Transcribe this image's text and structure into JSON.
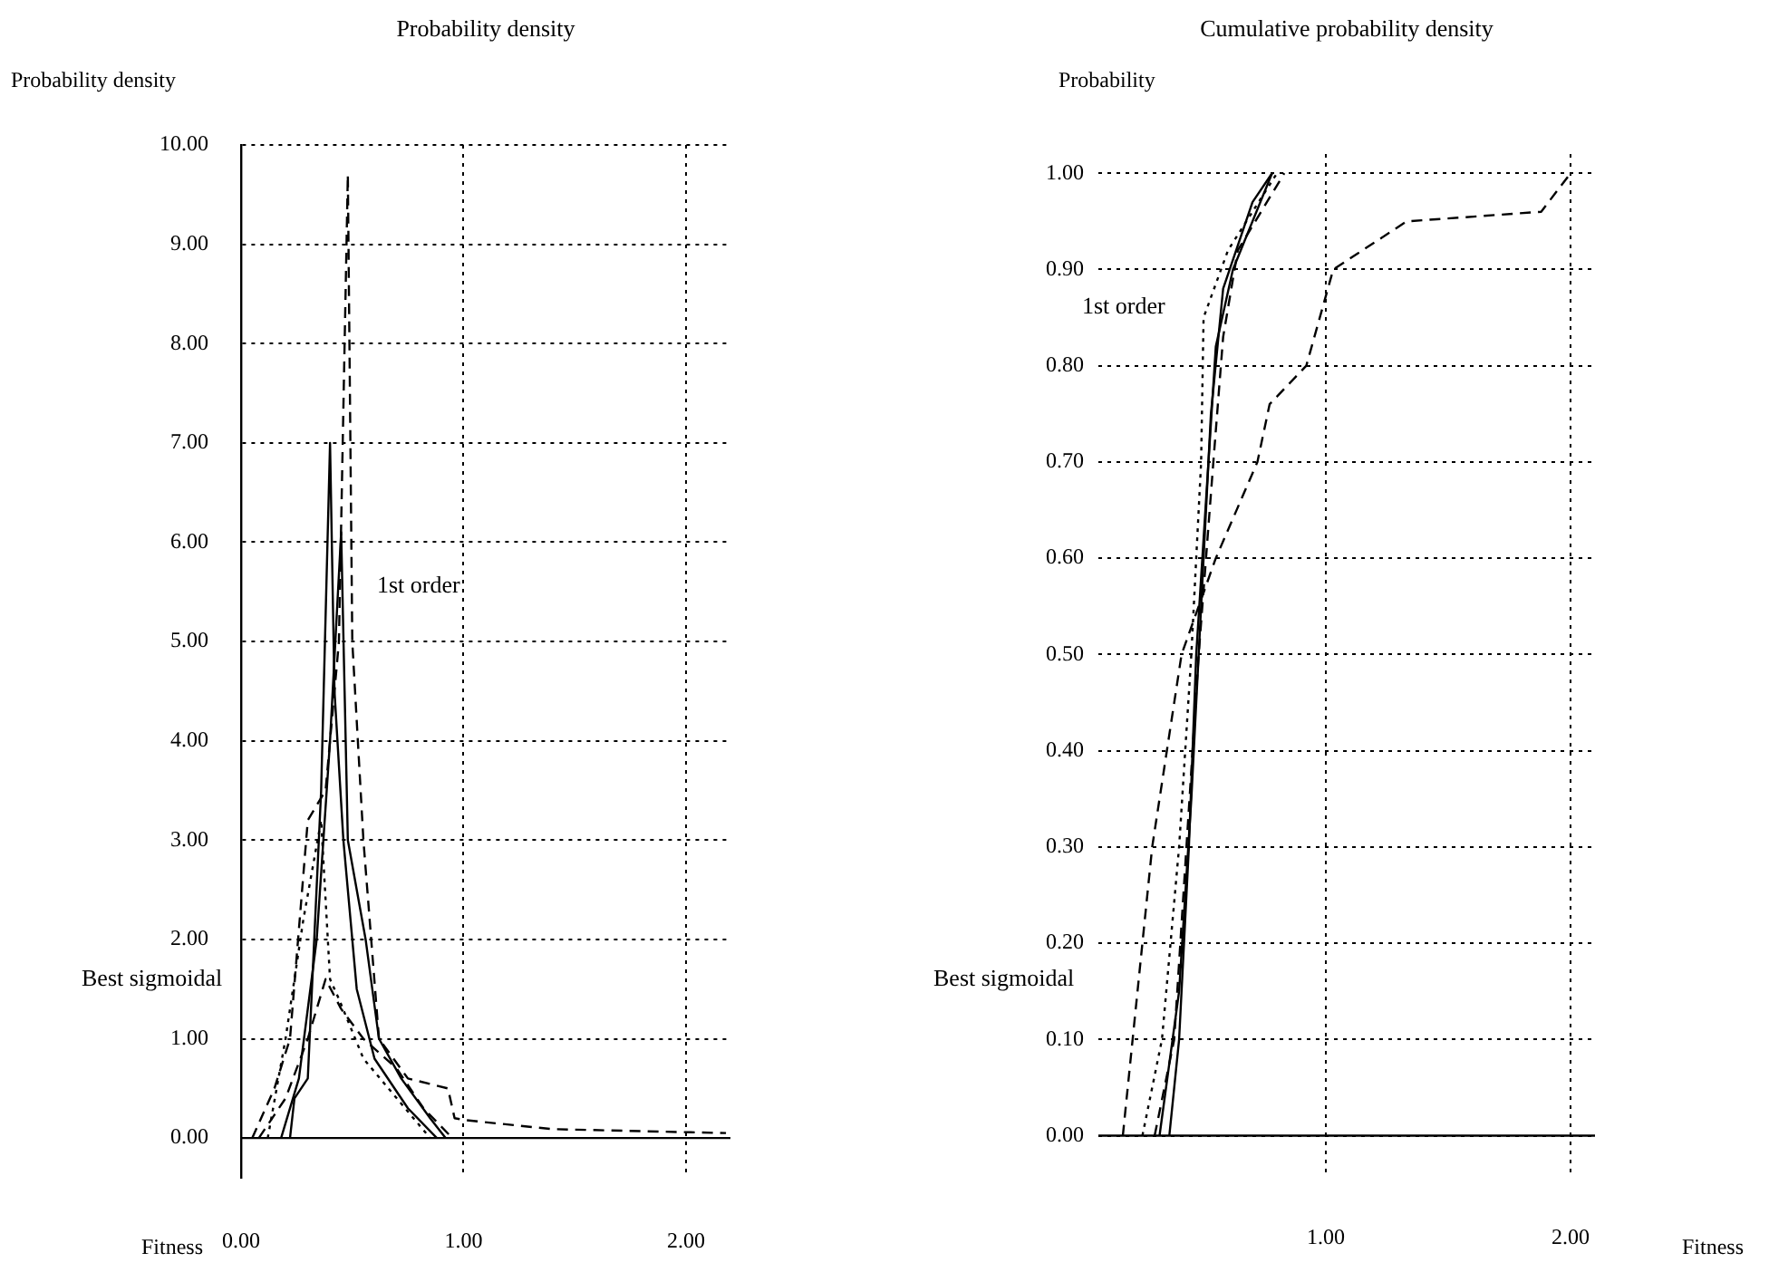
{
  "chart_data": [
    {
      "type": "line",
      "title": "Probability density",
      "ylabel": "Probability density",
      "xlabel": "Fitness",
      "xlim": [
        0,
        2.2
      ],
      "xticks": [
        {
          "value": 0,
          "label": "0.00"
        },
        {
          "value": 1,
          "label": "1.00"
        },
        {
          "value": 2,
          "label": "2.00"
        }
      ],
      "ylim": [
        -0.4,
        10
      ],
      "yticks": [
        {
          "value": 0,
          "label": "0.00"
        },
        {
          "value": 1,
          "label": "1.00"
        },
        {
          "value": 2,
          "label": "2.00"
        },
        {
          "value": 3,
          "label": "3.00"
        },
        {
          "value": 4,
          "label": "4.00"
        },
        {
          "value": 5,
          "label": "5.00"
        },
        {
          "value": 6,
          "label": "6.00"
        },
        {
          "value": 7,
          "label": "7.00"
        },
        {
          "value": 8,
          "label": "8.00"
        },
        {
          "value": 9,
          "label": "9.00"
        },
        {
          "value": 10,
          "label": "10.00"
        }
      ],
      "grid": true,
      "marker": "none",
      "annotations": [
        "1st order",
        "Best sigmoidal"
      ],
      "series": [
        {
          "color": "#000000",
          "line_style": "solid",
          "x": [
            0.22,
            0.24,
            0.3,
            0.36,
            0.4,
            0.42,
            0.46,
            0.52,
            0.6,
            0.75,
            0.88
          ],
          "values": [
            0,
            0.4,
            0.6,
            3.5,
            7.0,
            4.5,
            3.0,
            1.5,
            0.8,
            0.3,
            0
          ]
        },
        {
          "color": "#000000",
          "line_style": "dashed",
          "x": [
            0.05,
            0.15,
            0.22,
            0.3,
            0.38,
            0.44,
            0.48,
            0.5,
            0.55,
            0.62,
            0.75,
            0.93,
            0.96,
            1.01,
            1.4,
            2.18
          ],
          "values": [
            0,
            0.5,
            1.0,
            3.2,
            3.5,
            5.0,
            9.7,
            5.0,
            3.0,
            1.0,
            0.6,
            0.5,
            0.2,
            0.18,
            0.09,
            0.05
          ]
        },
        {
          "color": "#000000",
          "line_style": "dotted",
          "x": [
            0.12,
            0.2,
            0.28,
            0.36,
            0.4,
            0.44,
            0.55,
            0.7,
            0.85
          ],
          "values": [
            0,
            1.0,
            2.2,
            3.2,
            1.6,
            1.4,
            0.8,
            0.4,
            0
          ]
        },
        {
          "color": "#000000",
          "line_style": "solid",
          "x": [
            0.18,
            0.26,
            0.34,
            0.4,
            0.45,
            0.48,
            0.56,
            0.62,
            0.72,
            0.85,
            0.92
          ],
          "values": [
            0,
            0.6,
            2.0,
            4.0,
            6.1,
            3.0,
            2.0,
            1.0,
            0.6,
            0.2,
            0
          ]
        },
        {
          "color": "#000000",
          "line_style": "dashed",
          "x": [
            0.08,
            0.2,
            0.3,
            0.38,
            0.45,
            0.55,
            0.7,
            0.82,
            0.95
          ],
          "values": [
            0,
            0.4,
            1.0,
            1.6,
            1.3,
            1.0,
            0.7,
            0.3,
            0
          ]
        }
      ]
    },
    {
      "type": "line",
      "title": "Cumulative probability density",
      "ylabel": "Probability",
      "xlabel": "Fitness",
      "xlim": [
        0.07,
        2.1
      ],
      "xticks": [
        {
          "value": 1,
          "label": "1.00"
        },
        {
          "value": 2,
          "label": "2.00"
        }
      ],
      "ylim": [
        -0.04,
        1.02
      ],
      "yticks": [
        {
          "value": 0,
          "label": "0.00"
        },
        {
          "value": 0.1,
          "label": "0.10"
        },
        {
          "value": 0.2,
          "label": "0.20"
        },
        {
          "value": 0.3,
          "label": "0.30"
        },
        {
          "value": 0.4,
          "label": "0.40"
        },
        {
          "value": 0.5,
          "label": "0.50"
        },
        {
          "value": 0.6,
          "label": "0.60"
        },
        {
          "value": 0.7,
          "label": "0.70"
        },
        {
          "value": 0.8,
          "label": "0.80"
        },
        {
          "value": 0.9,
          "label": "0.90"
        },
        {
          "value": 1,
          "label": "1.00"
        }
      ],
      "grid": true,
      "marker": "none",
      "annotations": [
        "1st order",
        "Best sigmoidal"
      ],
      "series": [
        {
          "color": "#000000",
          "line_style": "solid",
          "x": [
            0.36,
            0.4,
            0.44,
            0.47,
            0.52,
            0.55,
            0.62,
            0.78
          ],
          "values": [
            0,
            0.1,
            0.3,
            0.5,
            0.7,
            0.82,
            0.9,
            1.0
          ]
        },
        {
          "color": "#000000",
          "line_style": "dotted",
          "x": [
            0.25,
            0.33,
            0.4,
            0.45,
            0.49,
            0.5,
            0.6,
            0.8
          ],
          "values": [
            0,
            0.1,
            0.3,
            0.5,
            0.7,
            0.85,
            0.92,
            1.0
          ]
        },
        {
          "color": "#000000",
          "line_style": "dashed",
          "x": [
            0.3,
            0.38,
            0.43,
            0.48,
            0.54,
            0.58,
            0.64,
            0.83
          ],
          "values": [
            0,
            0.1,
            0.3,
            0.5,
            0.7,
            0.83,
            0.92,
            1.0
          ]
        },
        {
          "color": "#000000",
          "line_style": "solid",
          "x": [
            0.32,
            0.4,
            0.45,
            0.49,
            0.53,
            0.58,
            0.7,
            0.78
          ],
          "values": [
            0,
            0.15,
            0.35,
            0.55,
            0.75,
            0.88,
            0.97,
            1.0
          ]
        },
        {
          "color": "#000000",
          "line_style": "dashed",
          "x": [
            0.17,
            0.29,
            0.41,
            0.55,
            0.72,
            0.77,
            0.92,
            1.03,
            1.33,
            1.88,
            2.0
          ],
          "values": [
            0,
            0.3,
            0.5,
            0.6,
            0.7,
            0.76,
            0.8,
            0.9,
            0.95,
            0.96,
            1.0
          ]
        }
      ]
    }
  ]
}
